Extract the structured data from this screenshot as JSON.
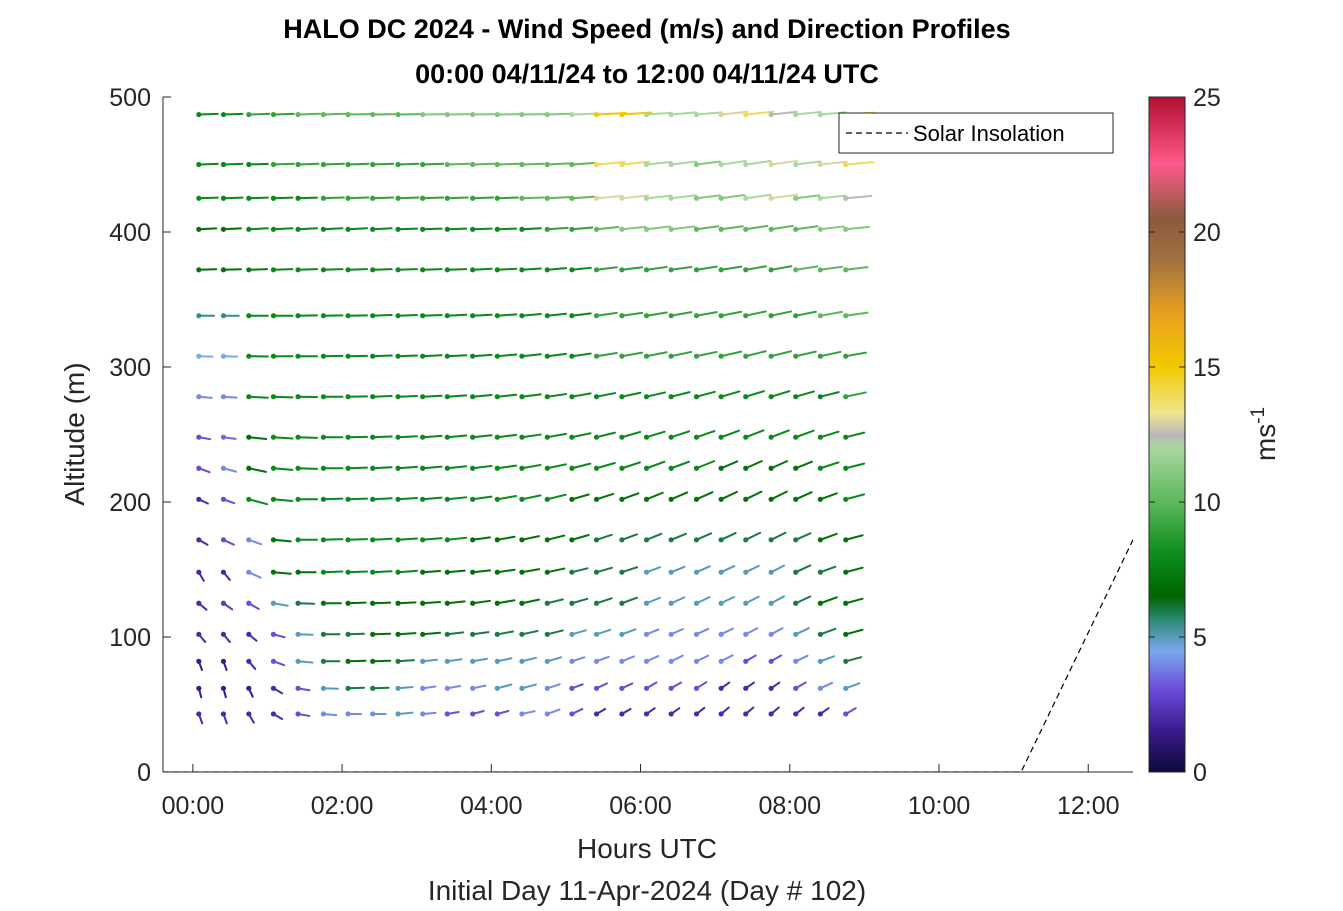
{
  "chart_data": {
    "type": "wind-barb profile",
    "title": "HALO DC 2024 - Wind Speed (m/s) and Direction Profiles",
    "subtitle": "00:00 04/11/24 to 12:00 04/11/24  UTC",
    "xlabel": "Hours UTC",
    "ylabel": "Altitude (m)",
    "footer": "Initial Day 11-Apr-2024 (Day # 102)",
    "xlim": [
      -0.4,
      12.6
    ],
    "ylim": [
      0,
      500
    ],
    "x_ticks": [
      0,
      2,
      4,
      6,
      8,
      10,
      12
    ],
    "x_tick_labels": [
      "00:00",
      "02:00",
      "04:00",
      "06:00",
      "08:00",
      "10:00",
      "12:00"
    ],
    "y_ticks": [
      0,
      100,
      200,
      300,
      400,
      500
    ],
    "y_tick_labels": [
      "0",
      "100",
      "200",
      "300",
      "400",
      "500"
    ],
    "colorbar": {
      "label": "ms",
      "label_superscript": "-1",
      "range": [
        0,
        25
      ],
      "ticks": [
        "0",
        "5",
        "10",
        "15",
        "20",
        "25"
      ],
      "stops": [
        {
          "v": 0,
          "c": "#0b0b3a"
        },
        {
          "v": 1.5,
          "c": "#3a1a8a"
        },
        {
          "v": 3,
          "c": "#6a4ad8"
        },
        {
          "v": 4.5,
          "c": "#7aa8ee"
        },
        {
          "v": 5.6,
          "c": "#2f8a7a"
        },
        {
          "v": 6.5,
          "c": "#006400"
        },
        {
          "v": 8,
          "c": "#0a8a1a"
        },
        {
          "v": 10,
          "c": "#5cb85c"
        },
        {
          "v": 12,
          "c": "#a8d8a0"
        },
        {
          "v": 12.5,
          "c": "#b8b8b8"
        },
        {
          "v": 13.3,
          "c": "#f0e68c"
        },
        {
          "v": 15,
          "c": "#f2c800"
        },
        {
          "v": 17,
          "c": "#e8a020"
        },
        {
          "v": 19,
          "c": "#a07040"
        },
        {
          "v": 20.5,
          "c": "#8b5a3c"
        },
        {
          "v": 22.5,
          "c": "#ff5a8a"
        },
        {
          "v": 25,
          "c": "#b01030"
        }
      ]
    },
    "legend": {
      "entries": [
        "Solar Insolation"
      ],
      "placement": "top-right"
    },
    "times": [
      0.08,
      0.41,
      0.75,
      1.08,
      1.41,
      1.75,
      2.08,
      2.41,
      2.75,
      3.08,
      3.41,
      3.75,
      4.08,
      4.41,
      4.75,
      5.08,
      5.41,
      5.75,
      6.08,
      6.41,
      6.75,
      7.08,
      7.41,
      7.75,
      8.08,
      8.41,
      8.75
    ],
    "altitudes": [
      43,
      62,
      82,
      102,
      125,
      148,
      172,
      202,
      225,
      248,
      278,
      308,
      338,
      372,
      402,
      425,
      450,
      487
    ],
    "profiles": [
      {
        "altitude": 43,
        "start_time": 0.08,
        "speeds": [
          2,
          2,
          2,
          2,
          3,
          4,
          4,
          4,
          5,
          4,
          3,
          3,
          3,
          4,
          4,
          3,
          2,
          2,
          2,
          2,
          2,
          2,
          2,
          2,
          2,
          2,
          3
        ],
        "directions": [
          340,
          340,
          330,
          300,
          280,
          275,
          270,
          270,
          265,
          265,
          260,
          255,
          255,
          258,
          250,
          245,
          240,
          240,
          235,
          235,
          232,
          230,
          230,
          230,
          232,
          235,
          240
        ]
      },
      {
        "altitude": 62,
        "start_time": 0.08,
        "speeds": [
          1.5,
          1.5,
          1.5,
          2,
          3,
          5,
          6,
          6,
          5,
          4,
          4,
          4,
          5,
          5,
          4,
          3,
          3,
          3,
          3,
          3,
          3,
          2,
          2,
          2,
          3,
          4,
          5
        ],
        "directions": [
          345,
          345,
          335,
          300,
          280,
          272,
          268,
          268,
          265,
          262,
          260,
          258,
          255,
          255,
          252,
          250,
          245,
          245,
          240,
          240,
          238,
          235,
          235,
          235,
          240,
          245,
          250
        ]
      },
      {
        "altitude": 82,
        "start_time": 0.08,
        "speeds": [
          1.5,
          1.5,
          2,
          3,
          5,
          6,
          7,
          7,
          6,
          5,
          5,
          5,
          5,
          5,
          5,
          4,
          4,
          4,
          4,
          4,
          4,
          4,
          3,
          3,
          4,
          5,
          6
        ],
        "directions": [
          340,
          340,
          320,
          290,
          275,
          270,
          268,
          268,
          266,
          264,
          262,
          260,
          258,
          256,
          254,
          252,
          250,
          248,
          246,
          244,
          244,
          242,
          240,
          240,
          245,
          250,
          255
        ]
      },
      {
        "altitude": 102,
        "start_time": 0.08,
        "speeds": [
          2,
          2,
          2,
          3,
          5,
          6,
          6,
          7,
          7,
          7,
          6,
          6,
          6,
          6,
          6,
          5,
          5,
          5,
          4,
          4,
          4,
          4,
          4,
          4,
          5,
          6,
          7
        ],
        "directions": [
          320,
          320,
          310,
          285,
          272,
          270,
          268,
          268,
          266,
          265,
          263,
          262,
          260,
          258,
          256,
          254,
          252,
          250,
          248,
          246,
          245,
          244,
          242,
          242,
          245,
          250,
          255
        ]
      },
      {
        "altitude": 125,
        "start_time": 0.08,
        "speeds": [
          2,
          2.5,
          3,
          5,
          6,
          7,
          7,
          7,
          7,
          7,
          7,
          7,
          7,
          7,
          6,
          6,
          6,
          6,
          5,
          5,
          5,
          5,
          5,
          5,
          6,
          7,
          7
        ],
        "directions": [
          310,
          305,
          300,
          280,
          272,
          270,
          268,
          268,
          267,
          266,
          264,
          262,
          260,
          258,
          256,
          254,
          252,
          250,
          248,
          246,
          245,
          244,
          243,
          242,
          245,
          250,
          255
        ]
      },
      {
        "altitude": 148,
        "start_time": 0.08,
        "speeds": [
          2,
          2,
          4,
          7,
          7,
          8,
          8,
          8,
          8,
          7,
          7,
          7,
          7,
          7,
          7,
          6,
          6,
          6,
          5,
          5,
          5,
          5,
          5,
          5,
          6,
          6,
          7
        ],
        "directions": [
          330,
          320,
          295,
          275,
          270,
          268,
          268,
          267,
          266,
          266,
          265,
          264,
          262,
          260,
          258,
          256,
          254,
          252,
          250,
          248,
          246,
          245,
          244,
          243,
          245,
          250,
          255
        ]
      },
      {
        "altitude": 172,
        "start_time": 0.08,
        "speeds": [
          2,
          3,
          4,
          7,
          8,
          8,
          8,
          8,
          8,
          8,
          8,
          7,
          7,
          7,
          7,
          7,
          6,
          6,
          6,
          6,
          6,
          6,
          6,
          6,
          6,
          7,
          7
        ],
        "directions": [
          300,
          295,
          290,
          275,
          270,
          268,
          268,
          267,
          266,
          265,
          264,
          262,
          260,
          258,
          256,
          254,
          252,
          250,
          248,
          248,
          246,
          245,
          244,
          244,
          246,
          250,
          255
        ]
      },
      {
        "altitude": 202,
        "start_time": 0.08,
        "speeds": [
          2,
          3,
          8,
          8,
          8,
          8,
          8,
          8,
          8,
          8,
          8,
          8,
          8,
          8,
          8,
          7,
          7,
          7,
          7,
          7,
          7,
          7,
          7,
          7,
          7,
          7,
          8
        ],
        "directions": [
          295,
          290,
          285,
          275,
          270,
          268,
          268,
          267,
          266,
          265,
          264,
          262,
          260,
          258,
          256,
          254,
          252,
          250,
          248,
          247,
          246,
          245,
          244,
          244,
          246,
          250,
          255
        ]
      },
      {
        "altitude": 225,
        "start_time": 0.08,
        "speeds": [
          3,
          4,
          7,
          8,
          8,
          8,
          8,
          8,
          8,
          8,
          8,
          8,
          8,
          8,
          8,
          8,
          8,
          8,
          8,
          8,
          8,
          7,
          7,
          7,
          7,
          8,
          8
        ],
        "directions": [
          290,
          285,
          282,
          275,
          272,
          270,
          268,
          267,
          266,
          265,
          264,
          263,
          262,
          260,
          258,
          256,
          254,
          252,
          250,
          250,
          248,
          247,
          246,
          246,
          248,
          252,
          256
        ]
      },
      {
        "altitude": 248,
        "start_time": 0.08,
        "speeds": [
          3,
          3.5,
          7,
          8,
          8,
          8,
          8,
          8,
          8,
          8,
          8,
          8,
          8,
          8,
          8,
          8,
          8,
          8,
          8,
          8,
          8,
          8,
          8,
          8,
          8,
          8,
          8
        ],
        "directions": [
          280,
          278,
          276,
          274,
          272,
          270,
          269,
          268,
          267,
          266,
          265,
          264,
          263,
          262,
          260,
          258,
          256,
          254,
          253,
          252,
          251,
          250,
          249,
          249,
          250,
          253,
          256
        ]
      },
      {
        "altitude": 278,
        "start_time": 0.08,
        "speeds": [
          4,
          4,
          8,
          8,
          8,
          8,
          8,
          8,
          8,
          8,
          8,
          8,
          8,
          8,
          8,
          8,
          8,
          8,
          8,
          8,
          8,
          8,
          8,
          8,
          8,
          8,
          9
        ],
        "directions": [
          275,
          274,
          273,
          272,
          271,
          270,
          269,
          268,
          268,
          267,
          266,
          265,
          264,
          263,
          262,
          260,
          259,
          258,
          257,
          256,
          255,
          254,
          253,
          253,
          254,
          256,
          258
        ]
      },
      {
        "altitude": 308,
        "start_time": 0.08,
        "speeds": [
          4.5,
          4.5,
          8,
          8,
          8,
          8,
          8,
          8,
          8,
          8,
          8,
          8,
          8,
          8,
          8,
          8,
          9,
          9,
          9,
          9,
          9,
          9,
          9,
          9,
          9,
          9,
          9
        ],
        "directions": [
          272,
          272,
          271,
          270,
          270,
          269,
          269,
          268,
          268,
          267,
          267,
          266,
          265,
          264,
          263,
          262,
          261,
          260,
          259,
          258,
          258,
          257,
          256,
          256,
          257,
          258,
          260
        ]
      },
      {
        "altitude": 338,
        "start_time": 0.08,
        "speeds": [
          5.5,
          5.5,
          8,
          8,
          8,
          8,
          8,
          8,
          8,
          8,
          8,
          8,
          8,
          8,
          8,
          8,
          9,
          9,
          9,
          9,
          9,
          9,
          9,
          9,
          9,
          10,
          10
        ],
        "directions": [
          270,
          270,
          270,
          270,
          269,
          269,
          269,
          268,
          268,
          268,
          267,
          267,
          266,
          265,
          264,
          263,
          262,
          262,
          261,
          260,
          260,
          259,
          258,
          258,
          259,
          260,
          262
        ]
      },
      {
        "altitude": 372,
        "start_time": 0.08,
        "speeds": [
          7,
          7,
          7.5,
          8,
          8,
          8,
          8,
          8,
          8,
          8,
          8,
          8,
          8,
          8,
          8,
          8,
          9,
          9,
          9,
          9,
          9,
          9,
          9,
          9,
          10,
          10,
          10
        ],
        "directions": [
          268,
          268,
          268,
          268,
          268,
          268,
          268,
          268,
          268,
          268,
          268,
          267,
          267,
          266,
          265,
          264,
          263,
          263,
          262,
          262,
          261,
          261,
          260,
          260,
          261,
          262,
          263
        ]
      },
      {
        "altitude": 402,
        "start_time": 0.08,
        "speeds": [
          7,
          7,
          8,
          8,
          8,
          8,
          8,
          8,
          8,
          8,
          8,
          8,
          8,
          8,
          9,
          9,
          10,
          11,
          11,
          11,
          10,
          10,
          10,
          10,
          10,
          11,
          11
        ],
        "directions": [
          267,
          267,
          267,
          267,
          267,
          267,
          267,
          267,
          268,
          268,
          268,
          268,
          268,
          267,
          266,
          265,
          264,
          264,
          263,
          263,
          262,
          262,
          261,
          261,
          262,
          263,
          264
        ]
      },
      {
        "altitude": 425,
        "start_time": 0.08,
        "speeds": [
          8,
          8,
          8,
          8,
          8,
          9,
          9,
          9,
          9,
          9,
          9,
          9,
          9,
          10,
          10,
          10,
          13,
          13,
          12,
          12,
          11,
          11,
          12,
          13,
          11,
          12,
          12.5
        ],
        "directions": [
          268,
          268,
          268,
          268,
          268,
          268,
          268,
          268,
          268,
          268,
          268,
          268,
          268,
          268,
          267,
          266,
          265,
          264,
          264,
          263,
          263,
          262,
          262,
          262,
          263,
          264,
          265
        ]
      },
      {
        "altitude": 450,
        "start_time": 0.08,
        "speeds": [
          8,
          8,
          8,
          9,
          9,
          9,
          9,
          9,
          9,
          9,
          10,
          10,
          10,
          10,
          10,
          10,
          14,
          14,
          12,
          12,
          11,
          12,
          12,
          13,
          12,
          13,
          14
        ],
        "directions": [
          268,
          268,
          268,
          268,
          268,
          268,
          268,
          268,
          268,
          268,
          268,
          268,
          268,
          268,
          267,
          266,
          265,
          264,
          264,
          263,
          263,
          262,
          262,
          262,
          263,
          264,
          265
        ]
      },
      {
        "altitude": 487,
        "start_time": 0.08,
        "speeds": [
          8,
          8,
          9,
          9,
          10,
          10,
          10,
          10,
          10,
          11,
          11,
          11,
          11,
          11,
          11,
          12,
          15,
          15,
          12,
          12,
          12,
          13,
          14,
          12.5,
          12,
          12,
          14
        ],
        "directions": [
          268,
          268,
          268,
          268,
          268,
          268,
          269,
          269,
          269,
          269,
          269,
          269,
          269,
          269,
          268,
          268,
          267,
          266,
          266,
          265,
          265,
          264,
          264,
          264,
          264,
          265,
          266
        ]
      }
    ],
    "solar_insolation": {
      "x": [
        -0.4,
        11.1,
        12.6
      ],
      "y": [
        0,
        0,
        172
      ]
    }
  }
}
